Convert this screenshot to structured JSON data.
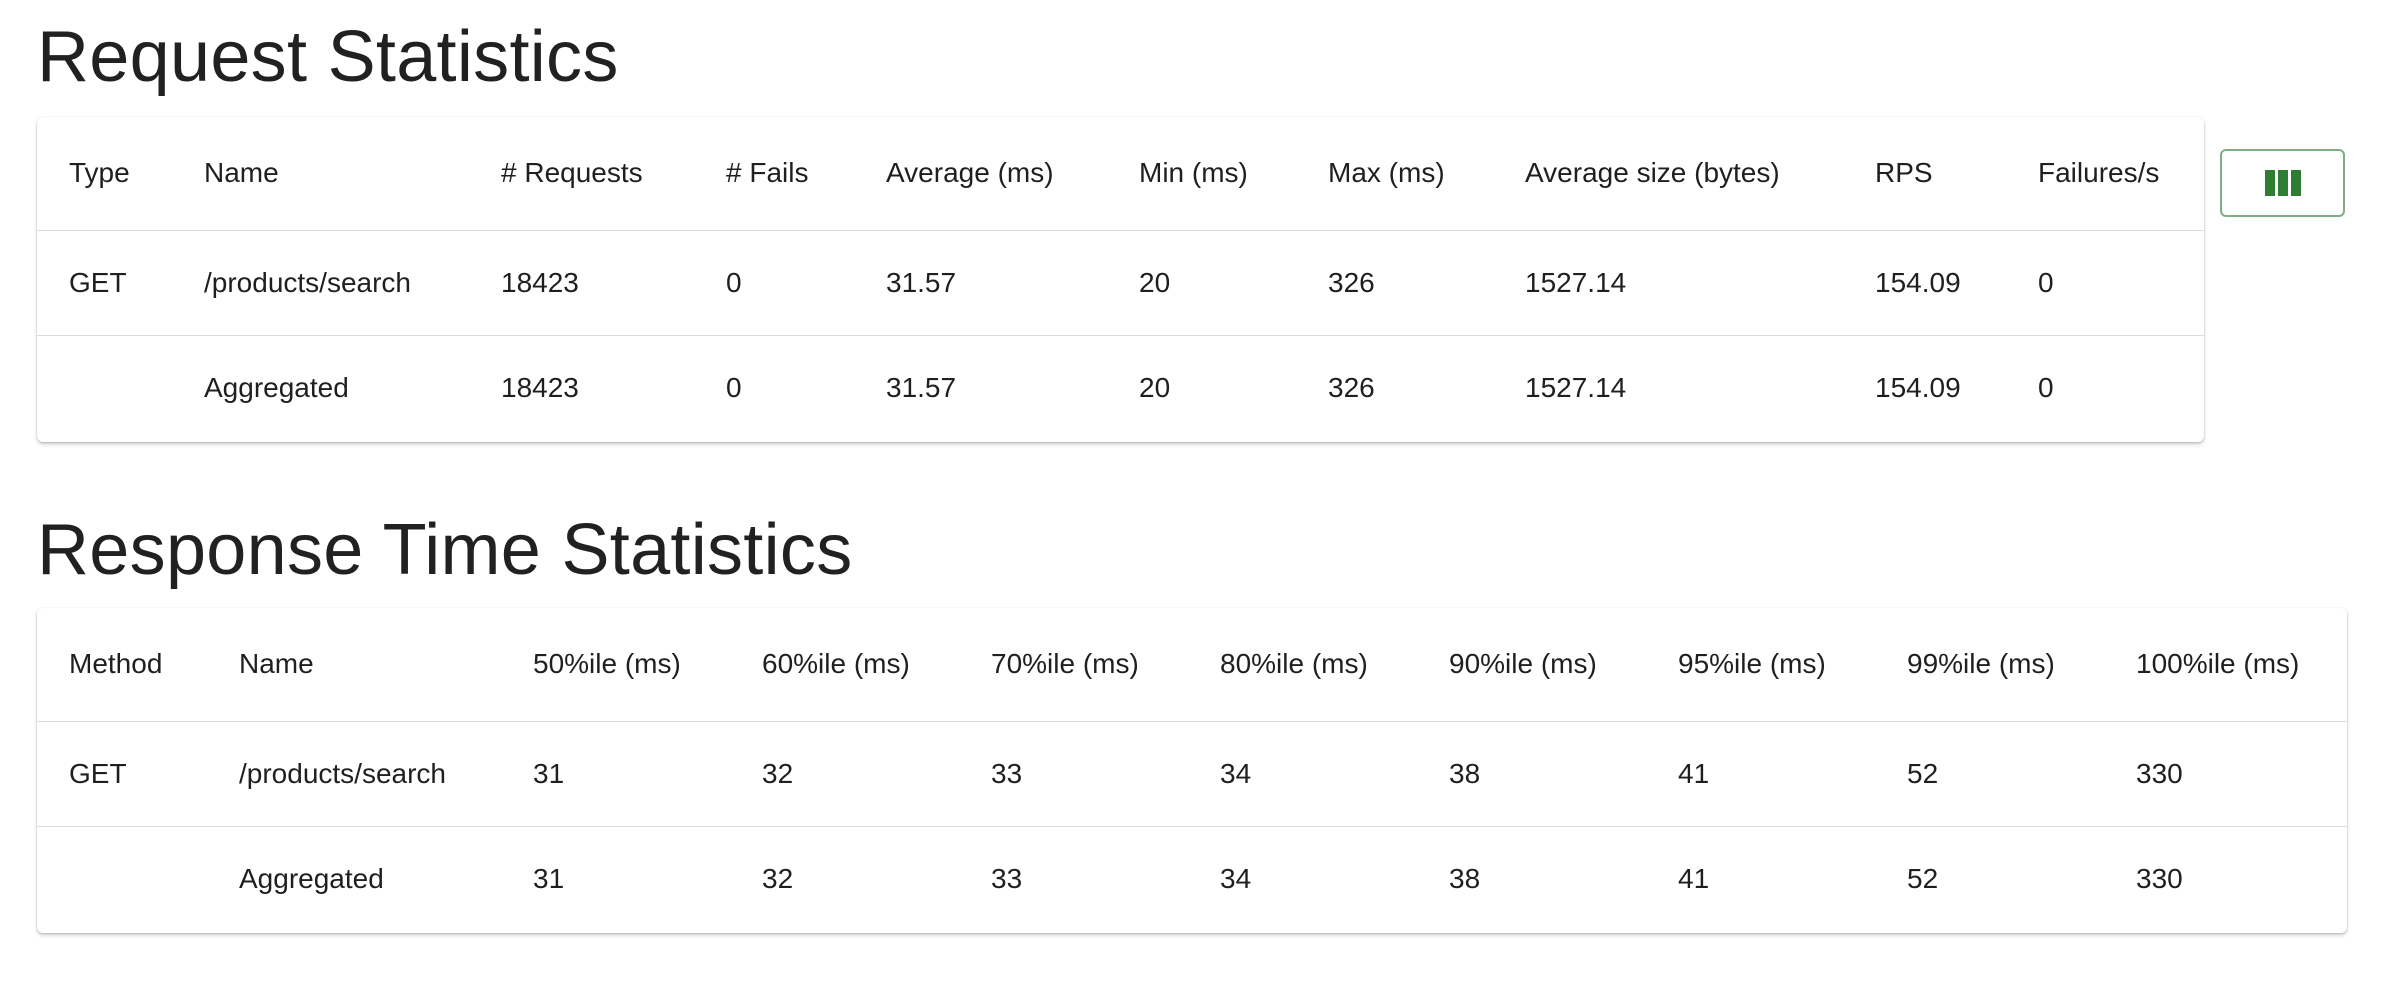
{
  "request_statistics": {
    "title": "Request Statistics",
    "columns": [
      "Type",
      "Name",
      "# Requests",
      "# Fails",
      "Average (ms)",
      "Min (ms)",
      "Max (ms)",
      "Average size (bytes)",
      "RPS",
      "Failures/s"
    ],
    "rows": [
      [
        "GET",
        "/products/search",
        "18423",
        "0",
        "31.57",
        "20",
        "326",
        "1527.14",
        "154.09",
        "0"
      ],
      [
        "",
        "Aggregated",
        "18423",
        "0",
        "31.57",
        "20",
        "326",
        "1527.14",
        "154.09",
        "0"
      ]
    ]
  },
  "response_time_statistics": {
    "title": "Response Time Statistics",
    "columns": [
      "Method",
      "Name",
      "50%ile (ms)",
      "60%ile (ms)",
      "70%ile (ms)",
      "80%ile (ms)",
      "90%ile (ms)",
      "95%ile (ms)",
      "99%ile (ms)",
      "100%ile (ms)"
    ],
    "rows": [
      [
        "GET",
        "/products/search",
        "31",
        "32",
        "33",
        "34",
        "38",
        "41",
        "52",
        "330"
      ],
      [
        "",
        "Aggregated",
        "31",
        "32",
        "33",
        "34",
        "38",
        "41",
        "52",
        "330"
      ]
    ]
  },
  "column_toggle": {
    "icon": "view-column-icon",
    "color": "#2e7d32"
  }
}
